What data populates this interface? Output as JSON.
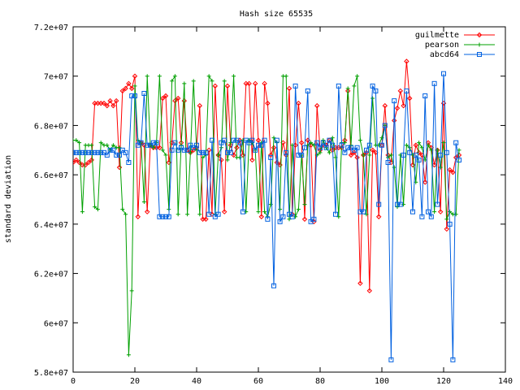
{
  "chart_data": {
    "type": "line",
    "title": "Hash size 65535",
    "xlabel": "",
    "ylabel": "standard deviation",
    "xlim": [
      0,
      140
    ],
    "ylim": [
      58000000,
      72000000
    ],
    "xticks": [
      0,
      20,
      40,
      60,
      80,
      100,
      120,
      140
    ],
    "yticks": [
      58000000,
      60000000,
      62000000,
      64000000,
      66000000,
      68000000,
      70000000,
      72000000
    ],
    "xtick_labels": [
      "0",
      "20",
      "40",
      "60",
      "80",
      "100",
      "120",
      "140"
    ],
    "ytick_labels": [
      "5.8e+07",
      "6e+07",
      "6.2e+07",
      "6.4e+07",
      "6.6e+07",
      "6.8e+07",
      "7e+07",
      "7.2e+07"
    ],
    "grid": false,
    "legend_position": "top-right",
    "series": [
      {
        "name": "guilmette",
        "color": "#ff0000",
        "marker": "diamond",
        "x": [
          0,
          1,
          2,
          3,
          4,
          5,
          6,
          7,
          8,
          9,
          10,
          11,
          12,
          13,
          14,
          15,
          16,
          17,
          18,
          19,
          20,
          21,
          22,
          23,
          24,
          25,
          26,
          27,
          28,
          29,
          30,
          31,
          32,
          33,
          34,
          35,
          36,
          37,
          38,
          39,
          40,
          41,
          42,
          43,
          44,
          45,
          46,
          47,
          48,
          49,
          50,
          51,
          52,
          53,
          54,
          55,
          56,
          57,
          58,
          59,
          60,
          61,
          62,
          63,
          64,
          65,
          66,
          67,
          68,
          69,
          70,
          71,
          72,
          73,
          74,
          75,
          76,
          77,
          78,
          79,
          80,
          81,
          82,
          83,
          84,
          85,
          86,
          87,
          88,
          89,
          90,
          91,
          92,
          93,
          94,
          95,
          96,
          97,
          98,
          99,
          100,
          101,
          102,
          103,
          104,
          105,
          106,
          107,
          108,
          109,
          110,
          111,
          112,
          113,
          114,
          115,
          116,
          117,
          118,
          119,
          120,
          121,
          122,
          123,
          124,
          125
        ],
        "values": [
          66500000,
          66600000,
          66500000,
          66400000,
          66400000,
          66500000,
          66600000,
          68900000,
          68900000,
          68900000,
          68900000,
          68800000,
          69000000,
          68800000,
          69000000,
          66300000,
          69400000,
          69500000,
          69700000,
          69500000,
          70000000,
          64300000,
          67300000,
          67200000,
          64500000,
          67200000,
          67100000,
          67100000,
          67100000,
          69100000,
          69200000,
          66500000,
          67300000,
          69000000,
          69100000,
          67300000,
          69000000,
          67000000,
          66900000,
          67000000,
          67100000,
          68800000,
          64200000,
          64200000,
          67000000,
          64400000,
          69600000,
          66800000,
          66600000,
          64500000,
          69600000,
          67200000,
          66800000,
          67100000,
          67400000,
          66800000,
          69700000,
          69700000,
          66600000,
          69700000,
          67400000,
          64300000,
          69700000,
          68900000,
          66800000,
          67100000,
          66500000,
          66400000,
          67300000,
          66800000,
          69500000,
          64400000,
          67200000,
          68900000,
          67300000,
          64200000,
          67400000,
          67200000,
          64100000,
          68800000,
          67000000,
          67200000,
          67200000,
          67400000,
          67000000,
          67100000,
          67100000,
          67100000,
          67400000,
          69400000,
          66800000,
          66900000,
          66700000,
          61600000,
          66800000,
          66900000,
          61300000,
          67000000,
          66900000,
          64300000,
          67200000,
          68800000,
          66800000,
          66500000,
          68200000,
          68700000,
          69400000,
          68800000,
          70600000,
          69100000,
          66400000,
          67200000,
          66900000,
          66800000,
          65700000,
          67300000,
          67100000,
          66400000,
          67000000,
          64500000,
          68900000,
          63800000,
          66200000,
          66100000,
          66700000,
          66800000
        ]
      },
      {
        "name": "pearson",
        "color": "#00a000",
        "marker": "plus",
        "x": [
          0,
          1,
          2,
          3,
          4,
          5,
          6,
          7,
          8,
          9,
          10,
          11,
          12,
          13,
          14,
          15,
          16,
          17,
          18,
          19,
          20,
          21,
          22,
          23,
          24,
          25,
          26,
          27,
          28,
          29,
          30,
          31,
          32,
          33,
          34,
          35,
          36,
          37,
          38,
          39,
          40,
          41,
          42,
          43,
          44,
          45,
          46,
          47,
          48,
          49,
          50,
          51,
          52,
          53,
          54,
          55,
          56,
          57,
          58,
          59,
          60,
          61,
          62,
          63,
          64,
          65,
          66,
          67,
          68,
          69,
          70,
          71,
          72,
          73,
          74,
          75,
          76,
          77,
          78,
          79,
          80,
          81,
          82,
          83,
          84,
          85,
          86,
          87,
          88,
          89,
          90,
          91,
          92,
          93,
          94,
          95,
          96,
          97,
          98,
          99,
          100,
          101,
          102,
          103,
          104,
          105,
          106,
          107,
          108,
          109,
          110,
          111,
          112,
          113,
          114,
          115,
          116,
          117,
          118,
          119,
          120,
          121,
          122,
          123,
          124,
          125
        ],
        "values": [
          67400000,
          67400000,
          67300000,
          64500000,
          67200000,
          67200000,
          67200000,
          64700000,
          64600000,
          67300000,
          67200000,
          67200000,
          67000000,
          67200000,
          67100000,
          67100000,
          64600000,
          64400000,
          58700000,
          61300000,
          69600000,
          67400000,
          67300000,
          64900000,
          70000000,
          67200000,
          67100000,
          67300000,
          70000000,
          67000000,
          66800000,
          64600000,
          69800000,
          70000000,
          64400000,
          67200000,
          69700000,
          64400000,
          66900000,
          69800000,
          67000000,
          64400000,
          66700000,
          66800000,
          70000000,
          69800000,
          64400000,
          66800000,
          67100000,
          69800000,
          66600000,
          67300000,
          70000000,
          66700000,
          66700000,
          67400000,
          64500000,
          67400000,
          67300000,
          67000000,
          64500000,
          67300000,
          64500000,
          64300000,
          64800000,
          67500000,
          67300000,
          64600000,
          70000000,
          70000000,
          64200000,
          67200000,
          64300000,
          64600000,
          66800000,
          64800000,
          67200000,
          67300000,
          67200000,
          66800000,
          66900000,
          67400000,
          67100000,
          66900000,
          67500000,
          66700000,
          64300000,
          67300000,
          67300000,
          69500000,
          67200000,
          69600000,
          70000000,
          67400000,
          66800000,
          64400000,
          66800000,
          69100000,
          67200000,
          67200000,
          67500000,
          68000000,
          66700000,
          66800000,
          66300000,
          64700000,
          66800000,
          64800000,
          67200000,
          67100000,
          66800000,
          65700000,
          67300000,
          67100000,
          66600000,
          67200000,
          67000000,
          64500000,
          67000000,
          66300000,
          67300000,
          64200000,
          64500000,
          64400000,
          64400000,
          67000000
        ]
      },
      {
        "name": "abcd64",
        "color": "#0060e0",
        "marker": "square",
        "x": [
          0,
          1,
          2,
          3,
          4,
          5,
          6,
          7,
          8,
          9,
          10,
          11,
          12,
          13,
          14,
          15,
          16,
          17,
          18,
          19,
          20,
          21,
          22,
          23,
          24,
          25,
          26,
          27,
          28,
          29,
          30,
          31,
          32,
          33,
          34,
          35,
          36,
          37,
          38,
          39,
          40,
          41,
          42,
          43,
          44,
          45,
          46,
          47,
          48,
          49,
          50,
          51,
          52,
          53,
          54,
          55,
          56,
          57,
          58,
          59,
          60,
          61,
          62,
          63,
          64,
          65,
          66,
          67,
          68,
          69,
          70,
          71,
          72,
          73,
          74,
          75,
          76,
          77,
          78,
          79,
          80,
          81,
          82,
          83,
          84,
          85,
          86,
          87,
          88,
          89,
          90,
          91,
          92,
          93,
          94,
          95,
          96,
          97,
          98,
          99,
          100,
          101,
          102,
          103,
          104,
          105,
          106,
          107,
          108,
          109,
          110,
          111,
          112,
          113,
          114,
          115,
          116,
          117,
          118,
          119,
          120,
          121,
          122,
          123,
          124,
          125
        ],
        "values": [
          66900000,
          66900000,
          66900000,
          66900000,
          66900000,
          66900000,
          66900000,
          66900000,
          66900000,
          66900000,
          66900000,
          66800000,
          67000000,
          67000000,
          66800000,
          66800000,
          67000000,
          66900000,
          66500000,
          69200000,
          69200000,
          67200000,
          67300000,
          69300000,
          67200000,
          67200000,
          67300000,
          67300000,
          64300000,
          64300000,
          64300000,
          64300000,
          67000000,
          67300000,
          67000000,
          67100000,
          67000000,
          67000000,
          67200000,
          67100000,
          67200000,
          66900000,
          66900000,
          66900000,
          64400000,
          67400000,
          64300000,
          64400000,
          67300000,
          67400000,
          66900000,
          66900000,
          67400000,
          67400000,
          67300000,
          64500000,
          67400000,
          67300000,
          67400000,
          67000000,
          67200000,
          67200000,
          67400000,
          64200000,
          66700000,
          61500000,
          67400000,
          64100000,
          64300000,
          66900000,
          64400000,
          64300000,
          69600000,
          66800000,
          66800000,
          67100000,
          69400000,
          64100000,
          64200000,
          67300000,
          67100000,
          67300000,
          67100000,
          67400000,
          67200000,
          64400000,
          69600000,
          67200000,
          66900000,
          67100000,
          67100000,
          67000000,
          67100000,
          64500000,
          64500000,
          67000000,
          67200000,
          69600000,
          69400000,
          64800000,
          67200000,
          68000000,
          66500000,
          58500000,
          69000000,
          64800000,
          64800000,
          66800000,
          69400000,
          66900000,
          64500000,
          66800000,
          66600000,
          64300000,
          69200000,
          64500000,
          64300000,
          69700000,
          64800000,
          66800000,
          70100000,
          66900000,
          64000000,
          58500000,
          67300000,
          66600000
        ]
      }
    ]
  }
}
